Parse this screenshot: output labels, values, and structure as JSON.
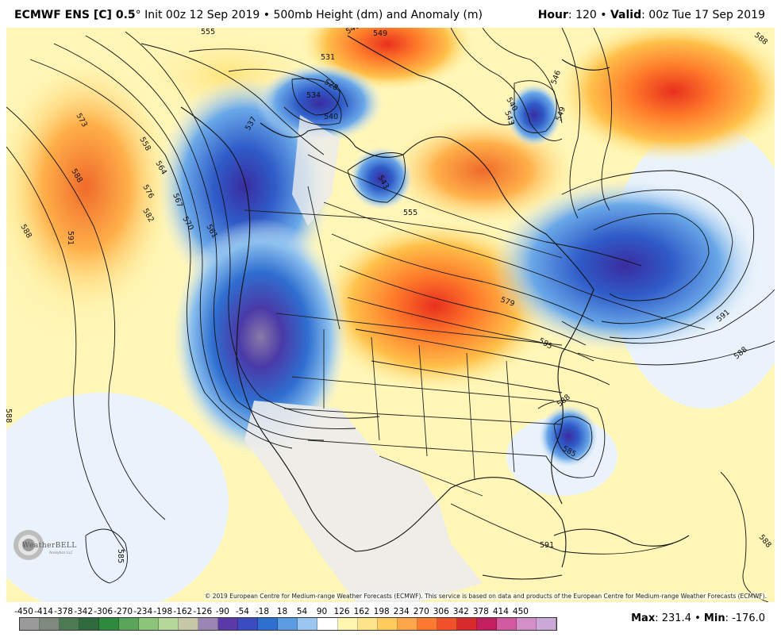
{
  "header": {
    "model": "ECMWF ENS [C] 0.5",
    "degree": "°",
    "init": "Init 00z 12 Sep 2019",
    "bullet": "•",
    "product": "500mb Height (dm) and Anomaly (m)",
    "hour_label": "Hour",
    "hour_value": ": 120",
    "valid_label": "Valid",
    "valid_value": ": 00z Tue 17 Sep 2019"
  },
  "map": {
    "contour_labels": [
      "555",
      "549",
      "546",
      "531",
      "528",
      "534",
      "540",
      "537",
      "543",
      "555",
      "546",
      "540",
      "543",
      "549",
      "588",
      "573",
      "558",
      "564",
      "576",
      "582",
      "588",
      "591",
      "567",
      "570",
      "561",
      "588",
      "579",
      "585",
      "588",
      "591",
      "588",
      "585",
      "585",
      "588",
      "591",
      "588"
    ],
    "copyright": "© 2019 European Centre for Medium-range Weather Forecasts (ECMWF). This service is based on data and products of the European Centre for Medium-range Weather Forecasts (ECMWF).",
    "logo_text": "WeatherBELL",
    "logo_sub": "Analytics LLC"
  },
  "colorbar": {
    "ticks": [
      "-450",
      "-414",
      "-378",
      "-342",
      "-306",
      "-270",
      "-234",
      "-198",
      "-162",
      "-126",
      "-90",
      "-54",
      "-18",
      "18",
      "54",
      "90",
      "126",
      "162",
      "198",
      "234",
      "270",
      "306",
      "342",
      "378",
      "414",
      "450"
    ],
    "colors": [
      "#9a9a9a",
      "#7f8a7f",
      "#4c7a52",
      "#2f6b3c",
      "#2f8a3f",
      "#5aa55a",
      "#8cc47a",
      "#b5d89a",
      "#c8c8a8",
      "#9a86b4",
      "#5a3aa8",
      "#3a4cc0",
      "#2f6fd0",
      "#5b9be0",
      "#9cc6ef",
      "#ffffff",
      "#fff6b0",
      "#ffe48a",
      "#ffcb5c",
      "#ffa64a",
      "#ff7a30",
      "#f0502a",
      "#d82a2a",
      "#c42060",
      "#d25aa0",
      "#d48ec8",
      "#caa8d8"
    ],
    "max_label": "Max",
    "max_value": ": 231.4",
    "min_label": "Min",
    "min_value": ": -176.0"
  }
}
